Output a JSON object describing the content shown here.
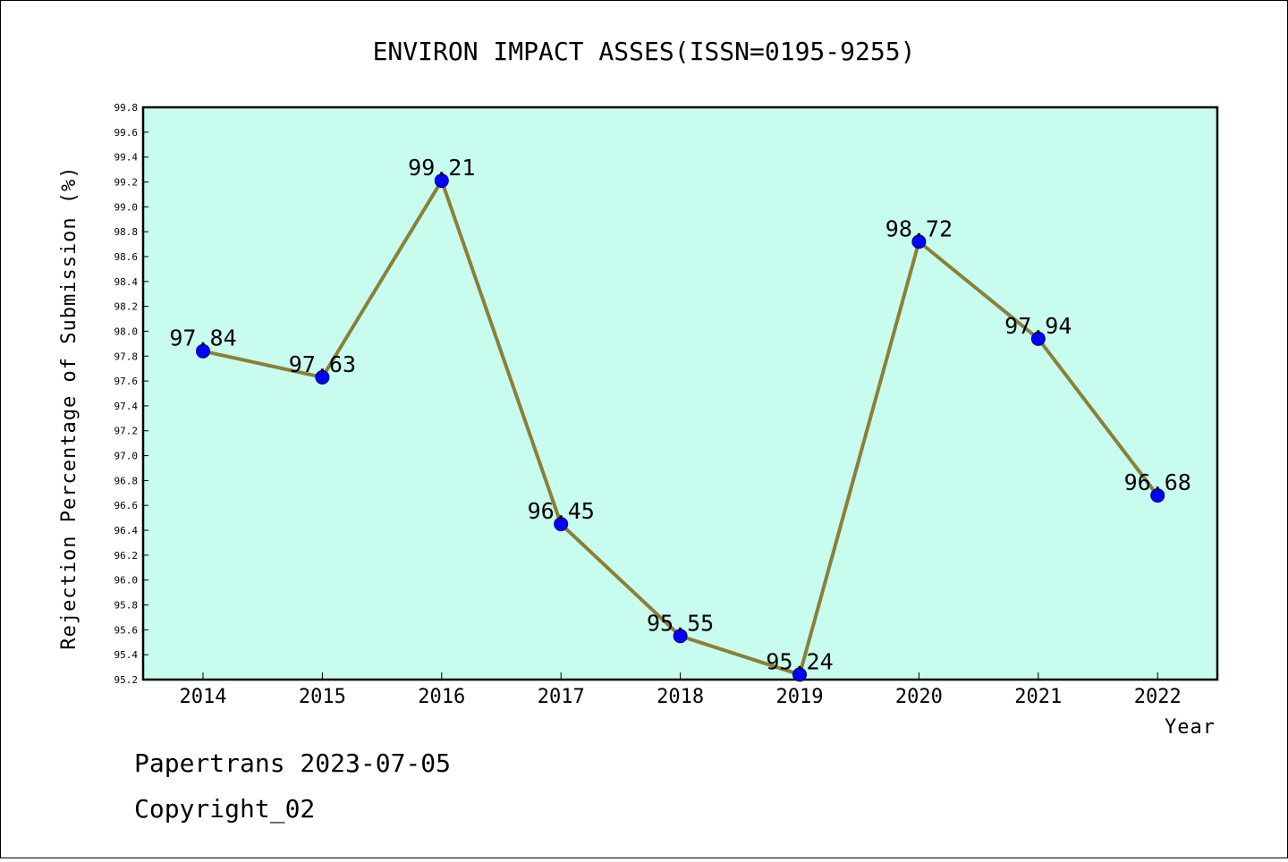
{
  "chart_data": {
    "type": "line",
    "title": "ENVIRON IMPACT ASSES(ISSN=0195-9255)",
    "xlabel": "Year",
    "ylabel": "Rejection Percentage of Submission (%)",
    "categories": [
      "2014",
      "2015",
      "2016",
      "2017",
      "2018",
      "2019",
      "2020",
      "2021",
      "2022"
    ],
    "values": [
      97.84,
      97.63,
      99.21,
      96.45,
      95.55,
      95.24,
      98.72,
      97.94,
      96.68
    ],
    "data_labels": [
      "97.84",
      "97.63",
      "99.21",
      "96.45",
      "95.55",
      "95.24",
      "98.72",
      "97.94",
      "96.68"
    ],
    "ylim": [
      95.2,
      99.8
    ],
    "yticks": [
      "95.2",
      "95.4",
      "95.6",
      "95.8",
      "96.0",
      "96.2",
      "96.4",
      "96.6",
      "96.8",
      "97.0",
      "97.2",
      "97.4",
      "97.6",
      "97.8",
      "98.0",
      "98.2",
      "98.4",
      "98.6",
      "98.8",
      "99.0",
      "99.2",
      "99.4",
      "99.6",
      "99.8"
    ],
    "grid": false,
    "colors": {
      "plot_background": "#c8fcee",
      "line": "#8b8038",
      "marker": "#0000ff"
    }
  },
  "footer": {
    "line1": "Papertrans 2023-07-05",
    "line2": "Copyright_02"
  }
}
